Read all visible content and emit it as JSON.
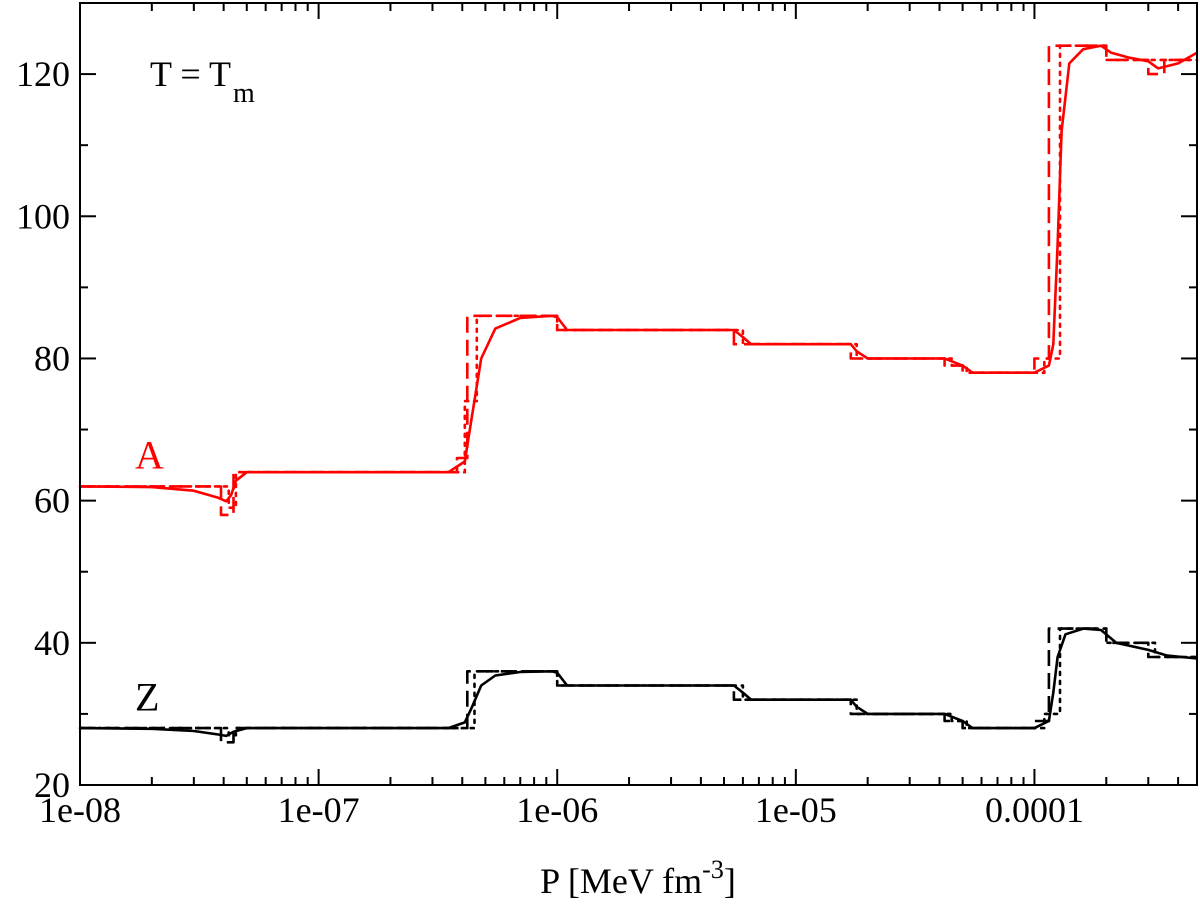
{
  "chart_data": {
    "type": "line",
    "title": "",
    "annotation": {
      "text": "T = T",
      "subscript": "m"
    },
    "xlabel": {
      "text": "P [MeV fm",
      "superscript": "-3",
      "suffix": "]"
    },
    "ylabel": "",
    "xscale": "log",
    "xlim": [
      1e-08,
      0.00048
    ],
    "ylim": [
      20,
      130
    ],
    "x_tick_values": [
      1e-08,
      1e-07,
      1e-06,
      1e-05,
      0.0001
    ],
    "x_tick_labels": [
      "1e-08",
      "1e-07",
      "1e-06",
      "1e-05",
      "0.0001"
    ],
    "y_tick_values": [
      20,
      40,
      60,
      80,
      100,
      120
    ],
    "y_tick_labels": [
      "20",
      "40",
      "60",
      "80",
      "100",
      "120"
    ],
    "colors": {
      "A": "#ff0000",
      "Z": "#000000",
      "axis": "#000000"
    },
    "series_labels": [
      {
        "text": "A",
        "color": "#ff0000",
        "x": 1.7e-08,
        "y": 64.5
      },
      {
        "text": "Z",
        "color": "#000000",
        "x": 1.7e-08,
        "y": 30.5
      }
    ],
    "series": [
      {
        "group": "A",
        "style": "solid",
        "color": "#ff0000",
        "x": [
          1e-08,
          2e-08,
          3e-08,
          3.8e-08,
          4.1e-08,
          4.3e-08,
          4.5e-08,
          5e-08,
          1e-07,
          3.5e-07,
          4.1e-07,
          4.4e-07,
          4.8e-07,
          5.5e-07,
          7e-07,
          9.5e-07,
          1e-06,
          1.1e-06,
          5.5e-06,
          6e-06,
          6.5e-06,
          1.7e-05,
          1.8e-05,
          2e-05,
          4.2e-05,
          5e-05,
          5.5e-05,
          0.0001,
          0.000115,
          0.00012,
          0.000125,
          0.00013,
          0.00014,
          0.00016,
          0.00019,
          0.00021,
          0.00025,
          0.0003,
          0.00033,
          0.0004,
          0.00048
        ],
        "y": [
          62,
          61.9,
          61.4,
          60.4,
          59.9,
          60.8,
          62.8,
          64,
          64,
          64,
          65.5,
          72,
          80,
          84.2,
          85.7,
          86,
          85.8,
          84,
          84,
          83,
          82,
          82,
          81,
          80,
          80,
          79,
          78,
          78,
          79,
          82,
          96,
          112,
          121.5,
          123.5,
          124,
          123,
          122.3,
          121.8,
          120.8,
          121.5,
          123
        ]
      },
      {
        "group": "A",
        "style": "dashed",
        "color": "#ff0000",
        "x": [
          1e-08,
          3.9e-08,
          3.9e-08,
          4.4e-08,
          4.4e-08,
          1e-07,
          3.8e-07,
          3.8e-07,
          4.2e-07,
          4.2e-07,
          1e-06,
          1e-06,
          5.5e-06,
          5.5e-06,
          1.7e-05,
          1.7e-05,
          4.2e-05,
          4.2e-05,
          5e-05,
          5e-05,
          0.0001,
          0.0001,
          0.000115,
          0.000115,
          0.0002,
          0.0002,
          0.0003,
          0.0003,
          0.00035,
          0.00035,
          0.00048
        ],
        "y": [
          62,
          62,
          58,
          58,
          64,
          64,
          64,
          66,
          66,
          86,
          86,
          84,
          84,
          82,
          82,
          80,
          80,
          79,
          79,
          78,
          78,
          80,
          80,
          124,
          124,
          122,
          122,
          120,
          120,
          122,
          122
        ]
      },
      {
        "group": "A",
        "style": "dotted",
        "color": "#ff0000",
        "x": [
          1e-08,
          4.2e-08,
          4.2e-08,
          4.5e-08,
          4.5e-08,
          1e-07,
          4.1e-07,
          4.1e-07,
          4.6e-07,
          4.6e-07,
          1e-06,
          1e-06,
          6e-06,
          6e-06,
          1.8e-05,
          1.8e-05,
          4.5e-05,
          4.5e-05,
          5.2e-05,
          5.2e-05,
          0.00011,
          0.00011,
          0.000128,
          0.000128,
          0.0002,
          0.0002,
          0.00048
        ],
        "y": [
          62,
          62,
          59,
          59,
          64,
          64,
          64,
          74,
          74,
          86,
          86,
          84,
          84,
          82,
          82,
          80,
          80,
          79,
          79,
          78,
          78,
          80,
          80,
          124,
          124,
          122,
          122
        ]
      },
      {
        "group": "Z",
        "style": "solid",
        "color": "#000000",
        "x": [
          1e-08,
          2e-08,
          3e-08,
          3.8e-08,
          4.1e-08,
          4.4e-08,
          5e-08,
          1e-07,
          3.5e-07,
          4.1e-07,
          4.4e-07,
          4.8e-07,
          5.5e-07,
          7e-07,
          9.5e-07,
          1e-06,
          1.1e-06,
          5.5e-06,
          6e-06,
          6.5e-06,
          1.7e-05,
          1.8e-05,
          2e-05,
          4.2e-05,
          5e-05,
          5.5e-05,
          0.0001,
          0.000115,
          0.00012,
          0.000125,
          0.000135,
          0.00016,
          0.00019,
          0.00022,
          0.0003,
          0.00036,
          0.00048
        ],
        "y": [
          28,
          27.9,
          27.6,
          27.1,
          26.9,
          27.5,
          28,
          28,
          28,
          28.8,
          31,
          34,
          35.4,
          35.9,
          36,
          35.8,
          34,
          34,
          33,
          32,
          32,
          31,
          30,
          30,
          29,
          28,
          28,
          29,
          33,
          38,
          41.2,
          42,
          41.8,
          40,
          39,
          38.2,
          37.8
        ]
      },
      {
        "group": "Z",
        "style": "dashed",
        "color": "#000000",
        "x": [
          1e-08,
          3.9e-08,
          3.9e-08,
          4.4e-08,
          4.4e-08,
          1e-07,
          4.2e-07,
          4.2e-07,
          1e-06,
          1e-06,
          5.5e-06,
          5.5e-06,
          1.7e-05,
          1.7e-05,
          4.2e-05,
          4.2e-05,
          5e-05,
          5e-05,
          0.0001,
          0.0001,
          0.000115,
          0.000115,
          0.0002,
          0.0002,
          0.0003,
          0.0003,
          0.00048
        ],
        "y": [
          28,
          28,
          26,
          26,
          28,
          28,
          28,
          36,
          36,
          34,
          34,
          32,
          32,
          30,
          30,
          29,
          29,
          28,
          28,
          29,
          29,
          42,
          42,
          40,
          40,
          38,
          38
        ]
      },
      {
        "group": "Z",
        "style": "dotted",
        "color": "#000000",
        "x": [
          1e-08,
          4.2e-08,
          4.2e-08,
          4.5e-08,
          4.5e-08,
          1e-07,
          4.5e-07,
          4.5e-07,
          1e-06,
          1e-06,
          6e-06,
          6e-06,
          1.8e-05,
          1.8e-05,
          4.5e-05,
          4.5e-05,
          5.2e-05,
          5.2e-05,
          0.00011,
          0.00011,
          0.000128,
          0.000128,
          0.0002,
          0.0002,
          0.00032,
          0.00032,
          0.00048
        ],
        "y": [
          28,
          28,
          27,
          27,
          28,
          28,
          28,
          36,
          36,
          34,
          34,
          32,
          32,
          30,
          30,
          29,
          29,
          28,
          28,
          30,
          30,
          42,
          42,
          40,
          40,
          38,
          38
        ]
      }
    ]
  }
}
